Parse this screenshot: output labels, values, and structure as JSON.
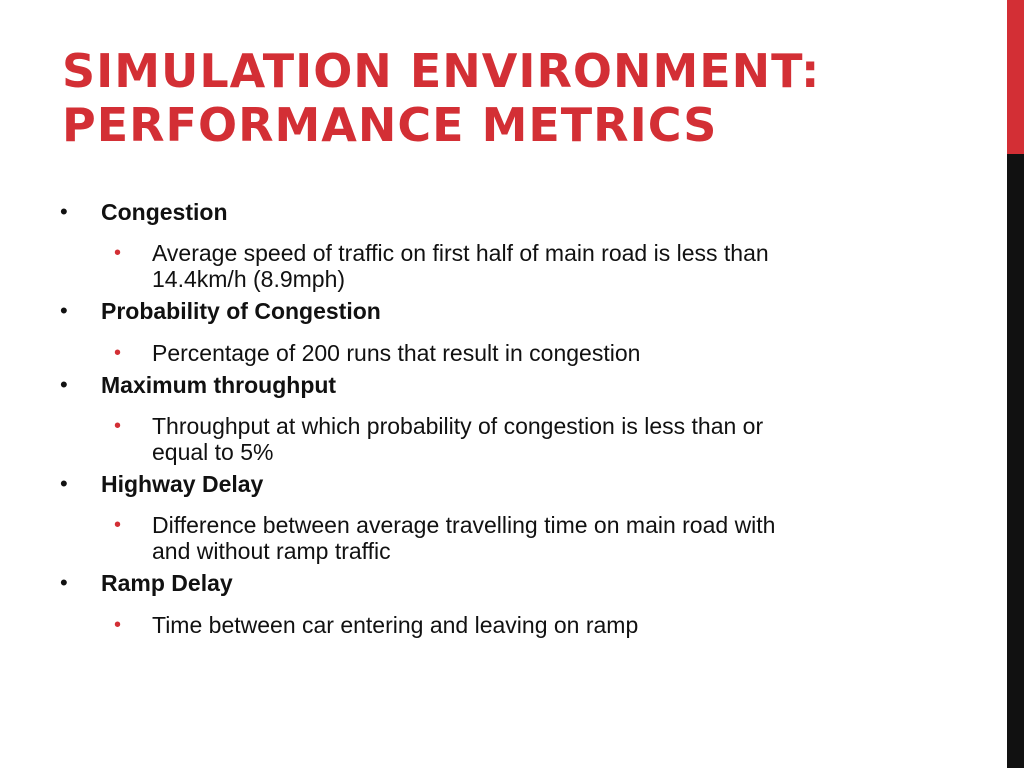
{
  "slide": {
    "title_line1": "SIMULATION ENVIRONMENT:",
    "title_line2": "PERFORMANCE METRICS",
    "bullet_glyph": "•",
    "items": [
      {
        "heading": "Congestion",
        "detail_line1": "Average speed of traffic on first half of main road is less than",
        "detail_line2": "14.4km/h (8.9mph)"
      },
      {
        "heading": "Probability of Congestion",
        "detail_line1": "Percentage of 200 runs that result in congestion",
        "detail_line2": ""
      },
      {
        "heading": "Maximum throughput",
        "detail_line1": "Throughput at which probability of congestion is less than or",
        "detail_line2": "equal to 5%"
      },
      {
        "heading": "Highway Delay",
        "detail_line1": "Difference between average travelling time on main road with",
        "detail_line2": "and without ramp traffic"
      },
      {
        "heading": "Ramp Delay",
        "detail_line1": "Time between car entering and leaving on ramp",
        "detail_line2": ""
      }
    ]
  },
  "colors": {
    "accent": "#d32f35",
    "text": "#111111",
    "side_bar_dark": "#111111",
    "background": "#ffffff"
  }
}
